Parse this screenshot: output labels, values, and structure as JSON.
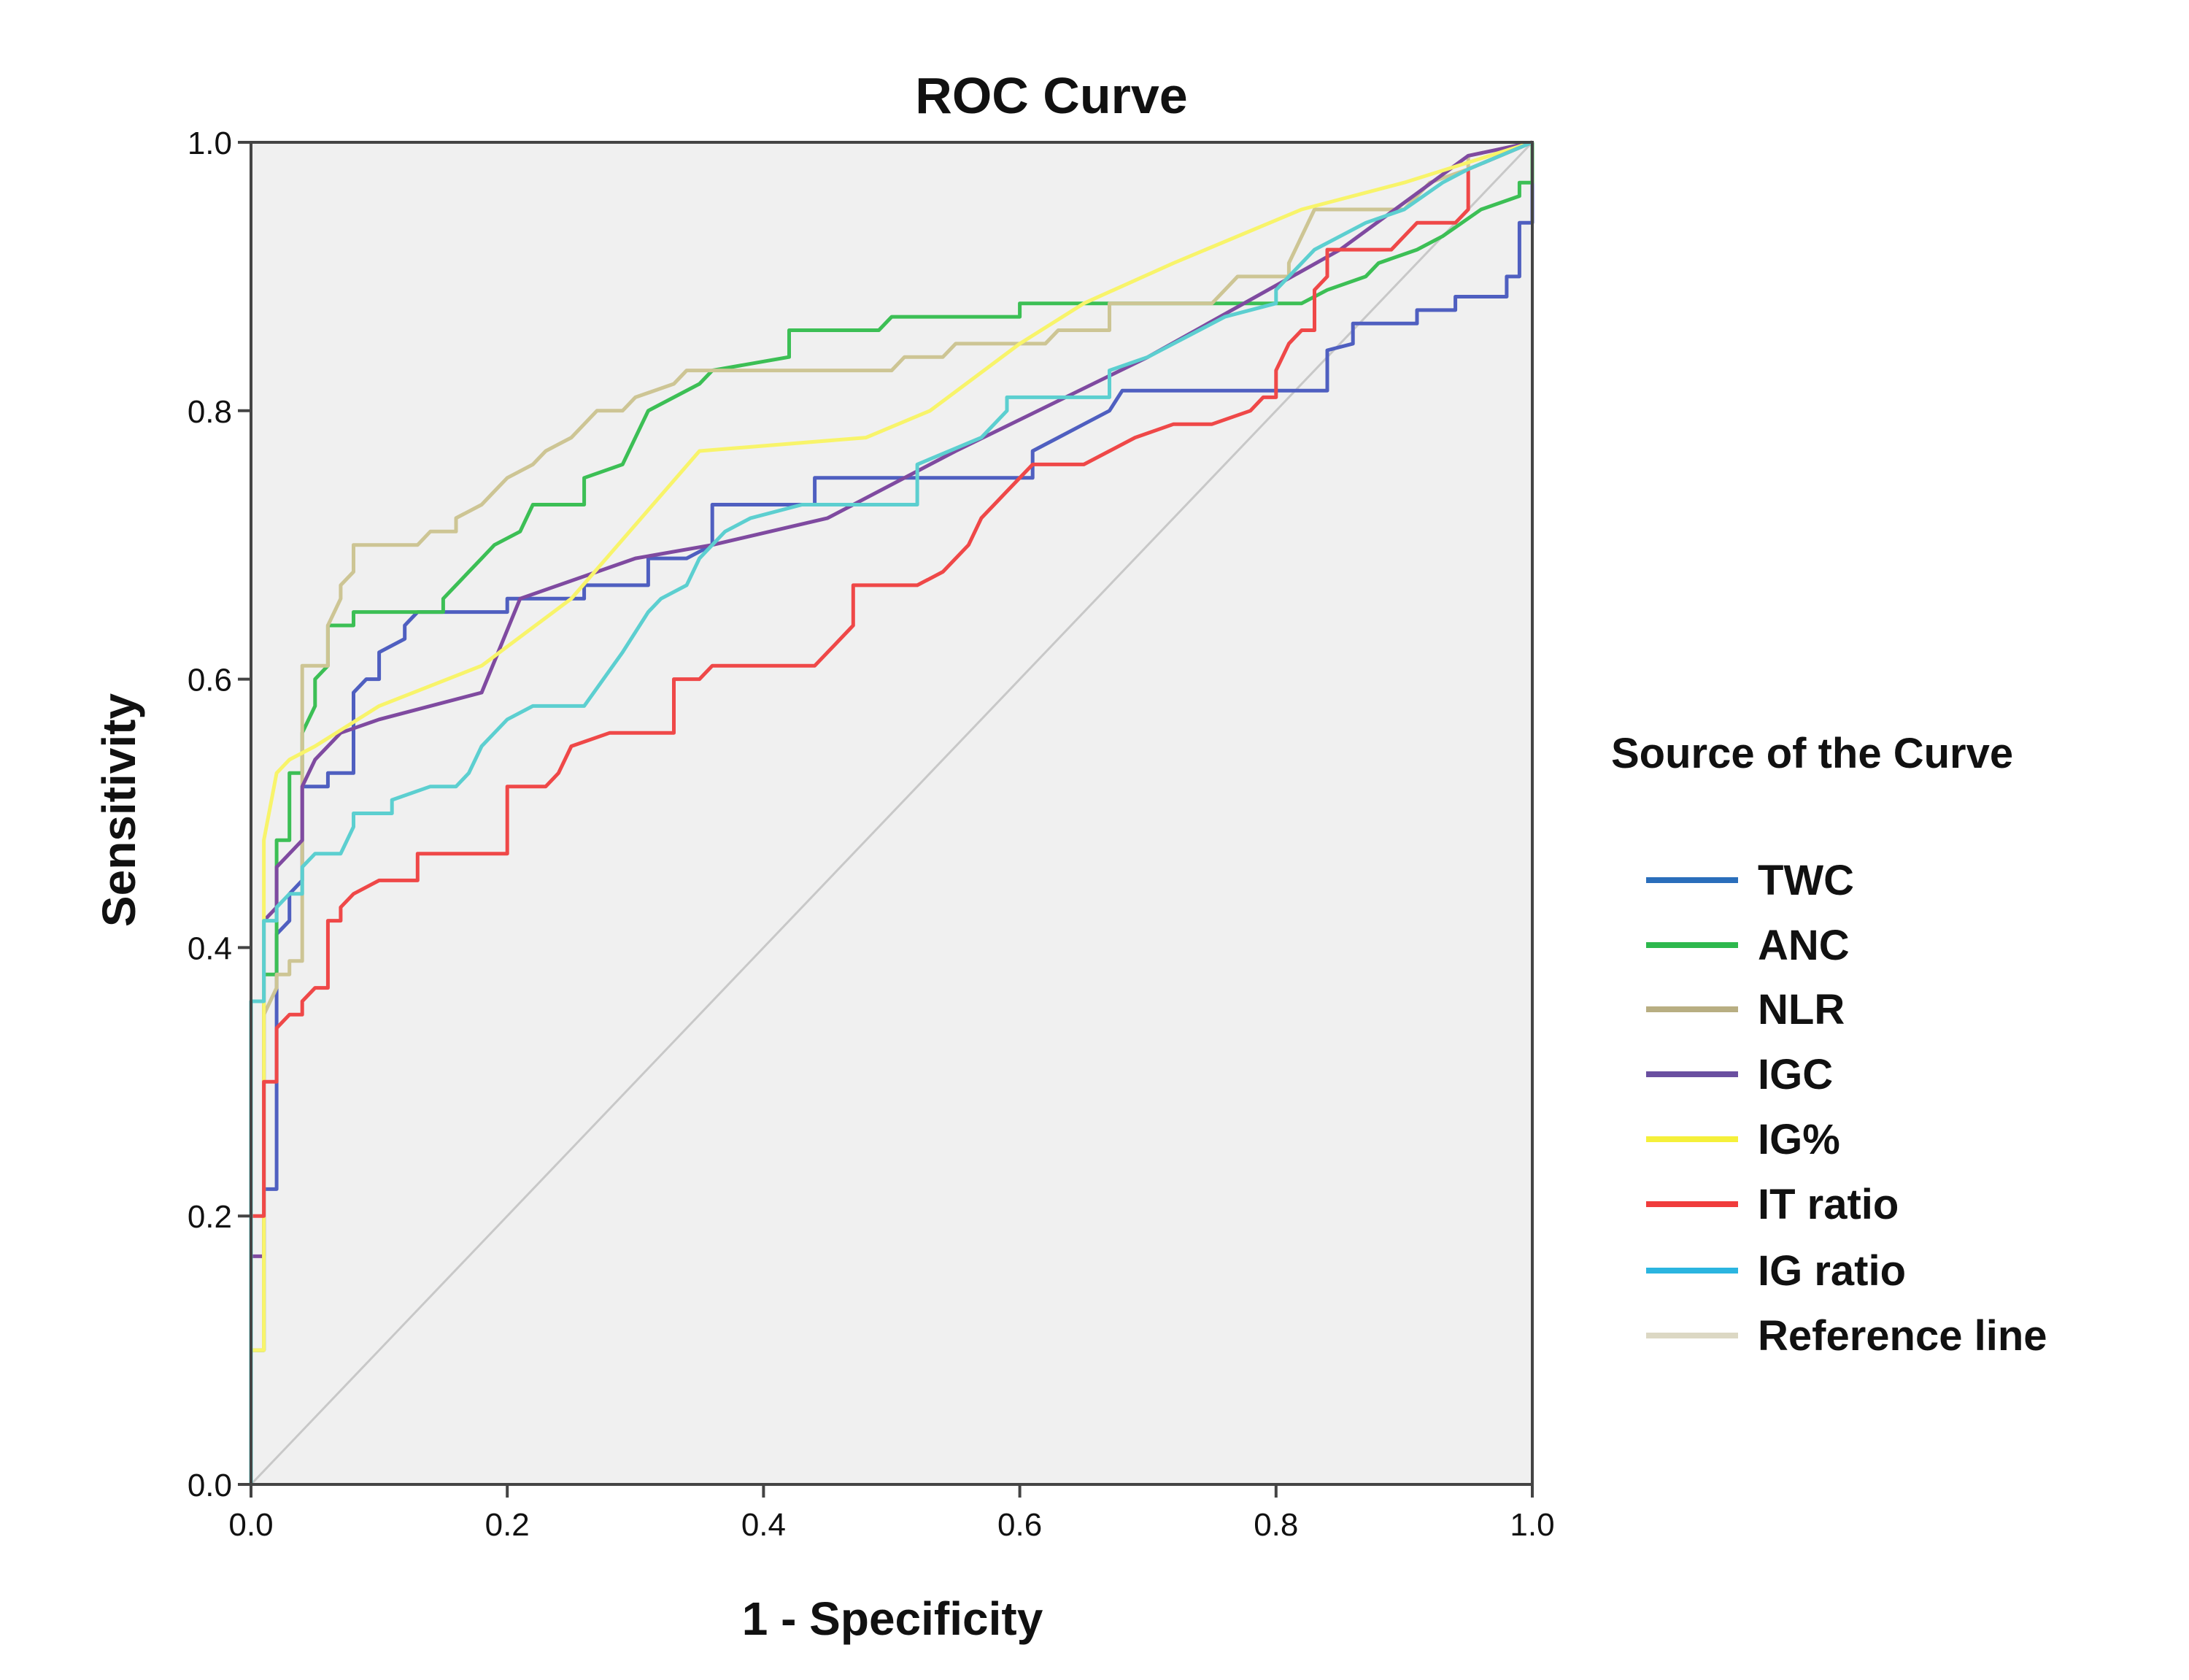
{
  "chart_data": {
    "type": "line",
    "title": "ROC Curve",
    "xlabel": "1 - Specificity",
    "ylabel": "Sensitivity",
    "xlim": [
      0,
      1
    ],
    "ylim": [
      0,
      1
    ],
    "xticks": [
      "0.0",
      "0.2",
      "0.4",
      "0.6",
      "0.8",
      "1.0"
    ],
    "yticks": [
      "0.0",
      "0.2",
      "0.4",
      "0.6",
      "0.8",
      "1.0"
    ],
    "grid": false,
    "plot_background": "#f0f0f0",
    "legend": {
      "title": "Source of the Curve",
      "placement": "right"
    },
    "series": [
      {
        "name": "TWC",
        "color": "#2a6ebb",
        "line_color": "#4f5fc0",
        "points": [
          [
            0,
            0
          ],
          [
            0,
            0.1
          ],
          [
            0.01,
            0.1
          ],
          [
            0.01,
            0.22
          ],
          [
            0.02,
            0.22
          ],
          [
            0.02,
            0.41
          ],
          [
            0.03,
            0.42
          ],
          [
            0.03,
            0.44
          ],
          [
            0.04,
            0.45
          ],
          [
            0.04,
            0.52
          ],
          [
            0.06,
            0.52
          ],
          [
            0.06,
            0.53
          ],
          [
            0.08,
            0.53
          ],
          [
            0.08,
            0.59
          ],
          [
            0.09,
            0.6
          ],
          [
            0.1,
            0.6
          ],
          [
            0.1,
            0.62
          ],
          [
            0.12,
            0.63
          ],
          [
            0.12,
            0.64
          ],
          [
            0.13,
            0.65
          ],
          [
            0.2,
            0.65
          ],
          [
            0.2,
            0.66
          ],
          [
            0.26,
            0.66
          ],
          [
            0.26,
            0.67
          ],
          [
            0.31,
            0.67
          ],
          [
            0.31,
            0.69
          ],
          [
            0.34,
            0.69
          ],
          [
            0.36,
            0.7
          ],
          [
            0.36,
            0.73
          ],
          [
            0.44,
            0.73
          ],
          [
            0.44,
            0.75
          ],
          [
            0.61,
            0.75
          ],
          [
            0.61,
            0.77
          ],
          [
            0.63,
            0.78
          ],
          [
            0.65,
            0.79
          ],
          [
            0.67,
            0.8
          ],
          [
            0.68,
            0.815
          ],
          [
            0.84,
            0.815
          ],
          [
            0.84,
            0.845
          ],
          [
            0.86,
            0.85
          ],
          [
            0.86,
            0.865
          ],
          [
            0.91,
            0.865
          ],
          [
            0.91,
            0.875
          ],
          [
            0.94,
            0.875
          ],
          [
            0.94,
            0.885
          ],
          [
            0.98,
            0.885
          ],
          [
            0.98,
            0.9
          ],
          [
            0.99,
            0.9
          ],
          [
            0.99,
            0.94
          ],
          [
            1,
            0.94
          ],
          [
            1,
            1
          ]
        ]
      },
      {
        "name": "ANC",
        "color": "#2db84d",
        "line_color": "#3cbf55",
        "points": [
          [
            0,
            0
          ],
          [
            0,
            0.1
          ],
          [
            0.01,
            0.1
          ],
          [
            0.01,
            0.38
          ],
          [
            0.02,
            0.38
          ],
          [
            0.02,
            0.48
          ],
          [
            0.03,
            0.48
          ],
          [
            0.03,
            0.53
          ],
          [
            0.04,
            0.53
          ],
          [
            0.04,
            0.56
          ],
          [
            0.05,
            0.58
          ],
          [
            0.05,
            0.6
          ],
          [
            0.06,
            0.61
          ],
          [
            0.06,
            0.64
          ],
          [
            0.08,
            0.64
          ],
          [
            0.08,
            0.65
          ],
          [
            0.15,
            0.65
          ],
          [
            0.15,
            0.66
          ],
          [
            0.16,
            0.67
          ],
          [
            0.17,
            0.68
          ],
          [
            0.18,
            0.69
          ],
          [
            0.19,
            0.7
          ],
          [
            0.21,
            0.71
          ],
          [
            0.22,
            0.73
          ],
          [
            0.26,
            0.73
          ],
          [
            0.26,
            0.75
          ],
          [
            0.29,
            0.76
          ],
          [
            0.3,
            0.78
          ],
          [
            0.31,
            0.8
          ],
          [
            0.33,
            0.81
          ],
          [
            0.35,
            0.82
          ],
          [
            0.36,
            0.83
          ],
          [
            0.42,
            0.84
          ],
          [
            0.42,
            0.86
          ],
          [
            0.49,
            0.86
          ],
          [
            0.5,
            0.87
          ],
          [
            0.6,
            0.87
          ],
          [
            0.6,
            0.88
          ],
          [
            0.82,
            0.88
          ],
          [
            0.84,
            0.89
          ],
          [
            0.87,
            0.9
          ],
          [
            0.88,
            0.91
          ],
          [
            0.91,
            0.92
          ],
          [
            0.93,
            0.93
          ],
          [
            0.96,
            0.95
          ],
          [
            0.99,
            0.96
          ],
          [
            0.99,
            0.97
          ],
          [
            1,
            0.97
          ],
          [
            1,
            1
          ]
        ]
      },
      {
        "name": "NLR",
        "color": "#b8ae82",
        "line_color": "#cdc594",
        "points": [
          [
            0,
            0
          ],
          [
            0,
            0.1
          ],
          [
            0.01,
            0.1
          ],
          [
            0.01,
            0.35
          ],
          [
            0.02,
            0.37
          ],
          [
            0.02,
            0.38
          ],
          [
            0.03,
            0.38
          ],
          [
            0.03,
            0.39
          ],
          [
            0.04,
            0.39
          ],
          [
            0.04,
            0.61
          ],
          [
            0.06,
            0.61
          ],
          [
            0.06,
            0.64
          ],
          [
            0.07,
            0.66
          ],
          [
            0.07,
            0.67
          ],
          [
            0.08,
            0.68
          ],
          [
            0.08,
            0.7
          ],
          [
            0.13,
            0.7
          ],
          [
            0.14,
            0.71
          ],
          [
            0.16,
            0.71
          ],
          [
            0.16,
            0.72
          ],
          [
            0.18,
            0.73
          ],
          [
            0.19,
            0.74
          ],
          [
            0.2,
            0.75
          ],
          [
            0.22,
            0.76
          ],
          [
            0.23,
            0.77
          ],
          [
            0.25,
            0.78
          ],
          [
            0.26,
            0.79
          ],
          [
            0.27,
            0.8
          ],
          [
            0.29,
            0.8
          ],
          [
            0.3,
            0.81
          ],
          [
            0.33,
            0.82
          ],
          [
            0.34,
            0.83
          ],
          [
            0.5,
            0.83
          ],
          [
            0.51,
            0.84
          ],
          [
            0.54,
            0.84
          ],
          [
            0.55,
            0.85
          ],
          [
            0.62,
            0.85
          ],
          [
            0.63,
            0.86
          ],
          [
            0.67,
            0.86
          ],
          [
            0.67,
            0.88
          ],
          [
            0.75,
            0.88
          ],
          [
            0.76,
            0.89
          ],
          [
            0.77,
            0.9
          ],
          [
            0.81,
            0.9
          ],
          [
            0.81,
            0.91
          ],
          [
            0.83,
            0.95
          ],
          [
            0.9,
            0.95
          ],
          [
            0.92,
            0.97
          ],
          [
            0.95,
            0.98
          ],
          [
            0.95,
            0.99
          ],
          [
            1,
            1
          ]
        ]
      },
      {
        "name": "IGC",
        "color": "#6a4fa0",
        "line_color": "#7f4aa0",
        "points": [
          [
            0,
            0
          ],
          [
            0,
            0.17
          ],
          [
            0.01,
            0.17
          ],
          [
            0.01,
            0.42
          ],
          [
            0.02,
            0.43
          ],
          [
            0.02,
            0.46
          ],
          [
            0.04,
            0.48
          ],
          [
            0.04,
            0.52
          ],
          [
            0.05,
            0.54
          ],
          [
            0.07,
            0.56
          ],
          [
            0.1,
            0.57
          ],
          [
            0.18,
            0.59
          ],
          [
            0.21,
            0.66
          ],
          [
            0.3,
            0.69
          ],
          [
            0.36,
            0.7
          ],
          [
            0.45,
            0.72
          ],
          [
            0.55,
            0.77
          ],
          [
            0.7,
            0.84
          ],
          [
            0.85,
            0.92
          ],
          [
            0.95,
            0.99
          ],
          [
            1,
            1
          ]
        ]
      },
      {
        "name": "IG%",
        "color": "#f5f03a",
        "line_color": "#f8f46a",
        "points": [
          [
            0,
            0
          ],
          [
            0,
            0.1
          ],
          [
            0.01,
            0.1
          ],
          [
            0.01,
            0.48
          ],
          [
            0.02,
            0.53
          ],
          [
            0.03,
            0.54
          ],
          [
            0.05,
            0.55
          ],
          [
            0.1,
            0.58
          ],
          [
            0.18,
            0.61
          ],
          [
            0.25,
            0.66
          ],
          [
            0.35,
            0.77
          ],
          [
            0.48,
            0.78
          ],
          [
            0.53,
            0.8
          ],
          [
            0.6,
            0.85
          ],
          [
            0.65,
            0.88
          ],
          [
            0.72,
            0.91
          ],
          [
            0.82,
            0.95
          ],
          [
            0.9,
            0.97
          ],
          [
            1,
            1
          ]
        ]
      },
      {
        "name": "IT ratio",
        "color": "#f03c3c",
        "line_color": "#ef4848",
        "points": [
          [
            0,
            0
          ],
          [
            0,
            0.2
          ],
          [
            0.01,
            0.2
          ],
          [
            0.01,
            0.3
          ],
          [
            0.02,
            0.3
          ],
          [
            0.02,
            0.34
          ],
          [
            0.03,
            0.35
          ],
          [
            0.04,
            0.35
          ],
          [
            0.04,
            0.36
          ],
          [
            0.05,
            0.37
          ],
          [
            0.06,
            0.37
          ],
          [
            0.06,
            0.42
          ],
          [
            0.07,
            0.42
          ],
          [
            0.07,
            0.43
          ],
          [
            0.08,
            0.44
          ],
          [
            0.1,
            0.45
          ],
          [
            0.13,
            0.45
          ],
          [
            0.13,
            0.47
          ],
          [
            0.2,
            0.47
          ],
          [
            0.2,
            0.52
          ],
          [
            0.23,
            0.52
          ],
          [
            0.24,
            0.53
          ],
          [
            0.25,
            0.55
          ],
          [
            0.28,
            0.56
          ],
          [
            0.33,
            0.56
          ],
          [
            0.33,
            0.6
          ],
          [
            0.35,
            0.6
          ],
          [
            0.36,
            0.61
          ],
          [
            0.44,
            0.61
          ],
          [
            0.46,
            0.63
          ],
          [
            0.47,
            0.64
          ],
          [
            0.47,
            0.67
          ],
          [
            0.52,
            0.67
          ],
          [
            0.54,
            0.68
          ],
          [
            0.56,
            0.7
          ],
          [
            0.57,
            0.72
          ],
          [
            0.58,
            0.73
          ],
          [
            0.59,
            0.74
          ],
          [
            0.61,
            0.76
          ],
          [
            0.65,
            0.76
          ],
          [
            0.67,
            0.77
          ],
          [
            0.69,
            0.78
          ],
          [
            0.72,
            0.79
          ],
          [
            0.75,
            0.79
          ],
          [
            0.78,
            0.8
          ],
          [
            0.79,
            0.81
          ],
          [
            0.8,
            0.81
          ],
          [
            0.8,
            0.83
          ],
          [
            0.81,
            0.85
          ],
          [
            0.82,
            0.86
          ],
          [
            0.83,
            0.86
          ],
          [
            0.83,
            0.89
          ],
          [
            0.84,
            0.9
          ],
          [
            0.84,
            0.92
          ],
          [
            0.89,
            0.92
          ],
          [
            0.9,
            0.93
          ],
          [
            0.91,
            0.94
          ],
          [
            0.94,
            0.94
          ],
          [
            0.95,
            0.95
          ],
          [
            0.95,
            0.98
          ],
          [
            1,
            1
          ]
        ]
      },
      {
        "name": "IG ratio",
        "color": "#2bb5e0",
        "line_color": "#5ccfd0",
        "points": [
          [
            0,
            0
          ],
          [
            0,
            0.36
          ],
          [
            0.01,
            0.36
          ],
          [
            0.01,
            0.42
          ],
          [
            0.02,
            0.42
          ],
          [
            0.02,
            0.43
          ],
          [
            0.03,
            0.44
          ],
          [
            0.04,
            0.44
          ],
          [
            0.04,
            0.46
          ],
          [
            0.05,
            0.47
          ],
          [
            0.07,
            0.47
          ],
          [
            0.08,
            0.49
          ],
          [
            0.08,
            0.5
          ],
          [
            0.11,
            0.5
          ],
          [
            0.11,
            0.51
          ],
          [
            0.14,
            0.52
          ],
          [
            0.16,
            0.52
          ],
          [
            0.17,
            0.53
          ],
          [
            0.18,
            0.55
          ],
          [
            0.19,
            0.56
          ],
          [
            0.2,
            0.57
          ],
          [
            0.22,
            0.58
          ],
          [
            0.26,
            0.58
          ],
          [
            0.29,
            0.62
          ],
          [
            0.31,
            0.65
          ],
          [
            0.32,
            0.66
          ],
          [
            0.34,
            0.67
          ],
          [
            0.35,
            0.69
          ],
          [
            0.37,
            0.71
          ],
          [
            0.39,
            0.72
          ],
          [
            0.43,
            0.73
          ],
          [
            0.52,
            0.73
          ],
          [
            0.52,
            0.76
          ],
          [
            0.57,
            0.78
          ],
          [
            0.59,
            0.8
          ],
          [
            0.59,
            0.81
          ],
          [
            0.67,
            0.81
          ],
          [
            0.67,
            0.83
          ],
          [
            0.7,
            0.84
          ],
          [
            0.76,
            0.87
          ],
          [
            0.8,
            0.88
          ],
          [
            0.8,
            0.89
          ],
          [
            0.83,
            0.92
          ],
          [
            0.87,
            0.94
          ],
          [
            0.9,
            0.95
          ],
          [
            0.93,
            0.97
          ],
          [
            0.95,
            0.98
          ],
          [
            1,
            1
          ]
        ]
      },
      {
        "name": "Reference line",
        "color": "#dcd8c4",
        "line_color": "#c8c8c8",
        "points": [
          [
            0,
            0
          ],
          [
            1,
            1
          ]
        ]
      }
    ]
  }
}
